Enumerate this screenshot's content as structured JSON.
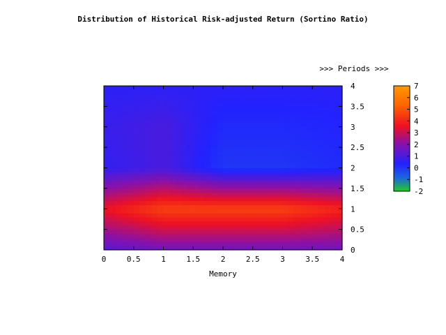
{
  "chart_data": {
    "type": "heatmap",
    "title": "Distribution of Historical Risk-adjusted Return (Sortino Ratio)",
    "xlabel": "Memory",
    "ylabel": ">>> Periods >>>",
    "xlim": [
      0,
      4
    ],
    "ylim": [
      0,
      4
    ],
    "x_ticks": [
      "0",
      "0.5",
      "1",
      "1.5",
      "2",
      "2.5",
      "3",
      "3.5",
      "4"
    ],
    "y_ticks": [
      "0",
      "0.5",
      "1",
      "1.5",
      "2",
      "2.5",
      "3",
      "3.5",
      "4"
    ],
    "colorbar": {
      "range": [
        -2,
        7
      ],
      "ticks": [
        "-2",
        "-1",
        "0",
        "1",
        "2",
        "3",
        "4",
        "5",
        "6",
        "7"
      ],
      "colors": [
        "#22cc22",
        "#1a66dd",
        "#2222ff",
        "#8811aa",
        "#ee1122",
        "#ff6600",
        "#ff9900"
      ]
    },
    "x": [
      0,
      1,
      2,
      3,
      4
    ],
    "y": [
      0,
      1,
      2,
      3,
      4
    ],
    "z": [
      [
        1.2,
        1.6,
        1.6,
        1.6,
        1.6
      ],
      [
        3.6,
        4.6,
        4.6,
        4.6,
        4.0
      ],
      [
        0.6,
        1.0,
        0.0,
        0.0,
        0.2
      ],
      [
        0.7,
        1.0,
        0.2,
        0.2,
        0.3
      ],
      [
        0.5,
        0.5,
        0.5,
        0.5,
        0.5
      ]
    ]
  }
}
